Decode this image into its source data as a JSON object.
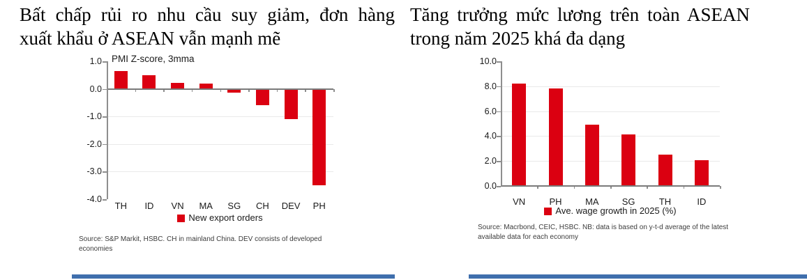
{
  "left_panel": {
    "title_lines": [
      "Bất chấp rủi ro nhu cầu suy giảm, đơn hàng",
      "xuất khẩu ở ASEAN vẫn mạnh mẽ"
    ],
    "source_lines": [
      "Source: S&P Markit, HSBC. CH in mainland China. DEV consists of developed",
      "economies"
    ]
  },
  "right_panel": {
    "title_lines": [
      "Tăng trưởng mức lương trên toàn ASEAN",
      "trong năm 2025 khá đa dạng"
    ],
    "source_lines": [
      "Source: Macrbond, CEIC, HSBC. NB: data is based on y-t-d average of the latest",
      "available data for each economy"
    ]
  },
  "chart_data": [
    {
      "id": "left",
      "type": "bar",
      "title": "PMI Z-score, 3mma",
      "categories": [
        "TH",
        "ID",
        "VN",
        "MA",
        "SG",
        "CH",
        "DEV",
        "PH"
      ],
      "values": [
        0.65,
        0.5,
        0.22,
        0.18,
        -0.13,
        -0.58,
        -1.1,
        -3.5
      ],
      "legend": "New export orders",
      "xlabel": "",
      "ylabel": "",
      "ylim": [
        -4.0,
        1.0
      ],
      "yticks": [
        1.0,
        0.0,
        -1.0,
        -2.0,
        -3.0,
        -4.0
      ],
      "grid": true,
      "legend_position": "bottom"
    },
    {
      "id": "right",
      "type": "bar",
      "title": "",
      "categories": [
        "VN",
        "PH",
        "MA",
        "SG",
        "TH",
        "ID"
      ],
      "values": [
        8.2,
        7.8,
        4.9,
        4.15,
        2.5,
        2.05
      ],
      "legend": "Ave. wage growth in 2025 (%)",
      "xlabel": "",
      "ylabel": "",
      "ylim": [
        0.0,
        10.0
      ],
      "yticks": [
        10.0,
        8.0,
        6.0,
        4.0,
        2.0,
        0.0
      ],
      "grid": true,
      "legend_position": "bottom"
    }
  ],
  "colors": {
    "bar": "#DB0011",
    "axis": "#8E8E8E",
    "baseline": "#7A7A7A",
    "grid": "#E9E9E9",
    "footer_rule": "#3F6FAD",
    "title_text": "#000000",
    "axis_text": "#1A1A1A",
    "source_text": "#3C3C3C"
  }
}
